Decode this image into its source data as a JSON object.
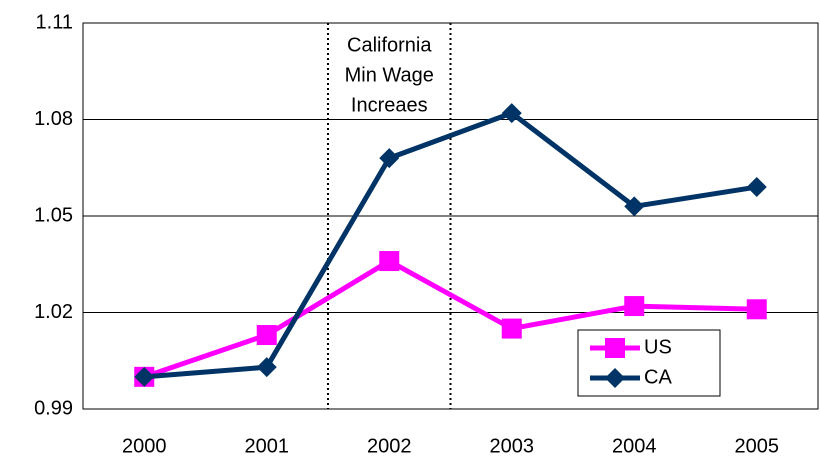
{
  "chart_data": {
    "type": "line",
    "categories": [
      "2000",
      "2001",
      "2002",
      "2003",
      "2004",
      "2005"
    ],
    "series": [
      {
        "name": "US",
        "color": "#ff00ff",
        "marker": "square",
        "values": [
          1.0,
          1.013,
          1.036,
          1.015,
          1.022,
          1.021
        ]
      },
      {
        "name": "CA",
        "color": "#003366",
        "marker": "diamond",
        "values": [
          1.0,
          1.003,
          1.068,
          1.082,
          1.053,
          1.059
        ]
      }
    ],
    "ylim": [
      0.99,
      1.11
    ],
    "yticks": [
      0.99,
      1.02,
      1.05,
      1.08,
      1.11
    ],
    "grid": true,
    "annotation": [
      "California",
      "Min Wage",
      "Increaes"
    ],
    "legend_position": "lower right"
  }
}
